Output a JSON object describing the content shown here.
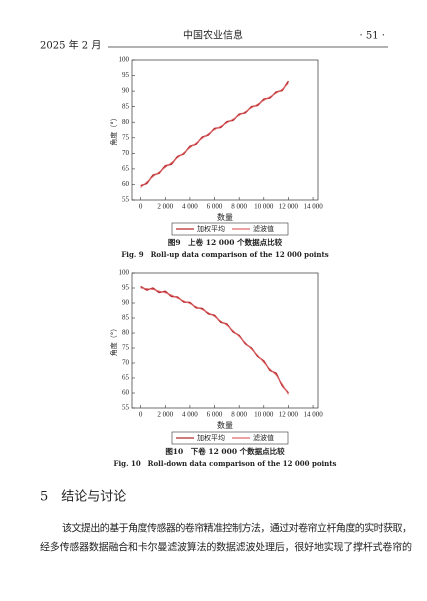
{
  "header": {
    "date": "2025 年 2 月",
    "journal": "中国农业信息",
    "page": "· 51 ·"
  },
  "chart_data": [
    {
      "type": "line",
      "ylabel": "角度（°）",
      "xlabel": "数量",
      "x": [
        0,
        500,
        1000,
        1500,
        2000,
        2500,
        3000,
        3500,
        4000,
        4500,
        5000,
        5500,
        6000,
        6500,
        7000,
        7500,
        8000,
        8500,
        9000,
        9500,
        10000,
        10500,
        11000,
        11500,
        12000
      ],
      "series": [
        {
          "name": "加权平均",
          "color": "#b8292e",
          "values": [
            59.6,
            60.3,
            63,
            63.6,
            66,
            66.5,
            69,
            69.8,
            72.3,
            72.9,
            75.2,
            75.9,
            78,
            78.3,
            80.2,
            80.6,
            82.6,
            83,
            85,
            85.4,
            87.4,
            87.8,
            89.7,
            90.2,
            93.2
          ]
        },
        {
          "name": "滤波值",
          "color": "#e06a6a",
          "values": [
            59,
            60.8,
            62.5,
            64,
            65.5,
            67,
            68.6,
            70.2,
            71.8,
            73.3,
            74.8,
            76.3,
            77.6,
            78.7,
            79.8,
            81,
            82.2,
            83.4,
            84.6,
            85.8,
            87,
            88.2,
            89.3,
            90.6,
            92.5
          ]
        }
      ],
      "xlim": [
        -700,
        14400
      ],
      "ylim": [
        55,
        100
      ],
      "xticks": [
        0,
        {
          "value": 2000,
          "label": "2 000"
        },
        {
          "value": 4000,
          "label": "4 000"
        },
        {
          "value": 6000,
          "label": "6 000"
        },
        {
          "value": 8000,
          "label": "8 000"
        },
        {
          "value": 10000,
          "label": "10 000"
        },
        {
          "value": 12000,
          "label": "12 000"
        },
        {
          "value": 14000,
          "label": "14 000"
        }
      ],
      "yticks": [
        55,
        60,
        65,
        70,
        75,
        80,
        85,
        90,
        95,
        100
      ],
      "caption": "图9　上卷 12 000 个数据点比较",
      "caption_en": "Fig. 9　Roll-up data comparison of the 12 000 points"
    },
    {
      "type": "line",
      "ylabel": "角度（°）",
      "xlabel": "数量",
      "x": [
        0,
        500,
        1000,
        1500,
        2000,
        2500,
        3000,
        3500,
        4000,
        4500,
        5000,
        5500,
        6000,
        6500,
        7000,
        7500,
        8000,
        8500,
        9000,
        9500,
        10000,
        10500,
        11000,
        11500,
        12000
      ],
      "series": [
        {
          "name": "加权平均",
          "color": "#b8292e",
          "values": [
            95.5,
            94.3,
            95,
            93.5,
            93.9,
            92.2,
            92,
            90.3,
            90.2,
            88.4,
            88.2,
            86.4,
            85.9,
            83.6,
            83,
            80.4,
            79.2,
            76.4,
            75,
            72.2,
            70.7,
            67.5,
            66.6,
            62.4,
            60
          ]
        },
        {
          "name": "滤波值",
          "color": "#e06a6a",
          "values": [
            95,
            94.8,
            94.5,
            94,
            93.4,
            92.7,
            91.6,
            90.7,
            89.8,
            88.8,
            87.8,
            86.8,
            85.5,
            84,
            82.6,
            80.8,
            78.8,
            76.8,
            74.6,
            72.6,
            70.2,
            68,
            66,
            63,
            59.5
          ]
        }
      ],
      "xlim": [
        -700,
        14400
      ],
      "ylim": [
        55,
        100
      ],
      "xticks": [
        0,
        {
          "value": 2000,
          "label": "2 000"
        },
        {
          "value": 4000,
          "label": "4 000"
        },
        {
          "value": 6000,
          "label": "6 000"
        },
        {
          "value": 8000,
          "label": "8 000"
        },
        {
          "value": 10000,
          "label": "10 000"
        },
        {
          "value": 12000,
          "label": "12 000"
        },
        {
          "value": 14000,
          "label": "14 000"
        }
      ],
      "yticks": [
        55,
        60,
        65,
        70,
        75,
        80,
        85,
        90,
        95,
        100
      ],
      "caption": "图10　下卷 12 000 个数据点比较",
      "caption_en": "Fig. 10　Roll-down data comparison of the 12 000 points"
    }
  ],
  "section": {
    "heading": "5　结论与讨论",
    "lines": [
      "该文提出的基于角度传感器的卷帘精准控制方法，通过对卷帘立杆角度的实时获取，",
      "经多传感器数据融合和卡尔曼滤波算法的数据滤波处理后，很好地实现了撑杆式卷帘的"
    ]
  }
}
